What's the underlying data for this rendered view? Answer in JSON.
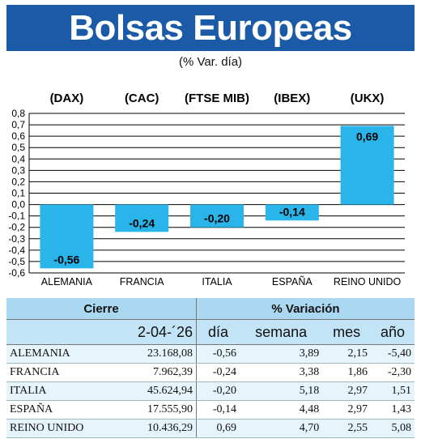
{
  "title": "Bolsas Europeas",
  "subtitle": "(% Var. día)",
  "chart_data": {
    "type": "bar",
    "categories": [
      "ALEMANIA",
      "FRANCIA",
      "ITALIA",
      "ESPAÑA",
      "REINO UNIDO"
    ],
    "index_labels": [
      "(DAX)",
      "(CAC)",
      "(FTSE MIB)",
      "(IBEX)",
      "(UKX)"
    ],
    "values": [
      -0.56,
      -0.24,
      -0.2,
      -0.14,
      0.69
    ],
    "value_labels": [
      "-0,56",
      "-0,24",
      "-0,20",
      "-0,14",
      "0,69"
    ],
    "yticks": [
      "0,8",
      "0,7",
      "0,6",
      "0,5",
      "0,4",
      "0,3",
      "0,2",
      "0,1",
      "0,0",
      "-0,1",
      "-0,2",
      "-0,3",
      "-0,4",
      "-0,5",
      "-0,6"
    ],
    "ylim": [
      -0.6,
      0.8
    ],
    "grid": true,
    "bar_color": "#29b4ea"
  },
  "table": {
    "header_cierre": "Cierre",
    "header_variacion": "% Variación",
    "date": "2-04-´26",
    "col_dia": "día",
    "col_semana": "semana",
    "col_mes": "mes",
    "col_anio": "año",
    "rows": [
      {
        "country": "ALEMANIA",
        "cierre": "23.168,08",
        "dia": "-0,56",
        "semana": "3,89",
        "mes": "2,15",
        "anio": "-5,40"
      },
      {
        "country": "FRANCIA",
        "cierre": "7.962,39",
        "dia": "-0,24",
        "semana": "3,38",
        "mes": "1,86",
        "anio": "-2,30"
      },
      {
        "country": "ITALIA",
        "cierre": "45.624,94",
        "dia": "-0,20",
        "semana": "5,18",
        "mes": "2,97",
        "anio": "1,51"
      },
      {
        "country": "ESPAÑA",
        "cierre": "17.555,90",
        "dia": "-0,14",
        "semana": "4,48",
        "mes": "2,97",
        "anio": "1,43"
      },
      {
        "country": "REINO UNIDO",
        "cierre": "10.436,29",
        "dia": "0,69",
        "semana": "4,70",
        "mes": "2,55",
        "anio": "5,08"
      }
    ]
  }
}
